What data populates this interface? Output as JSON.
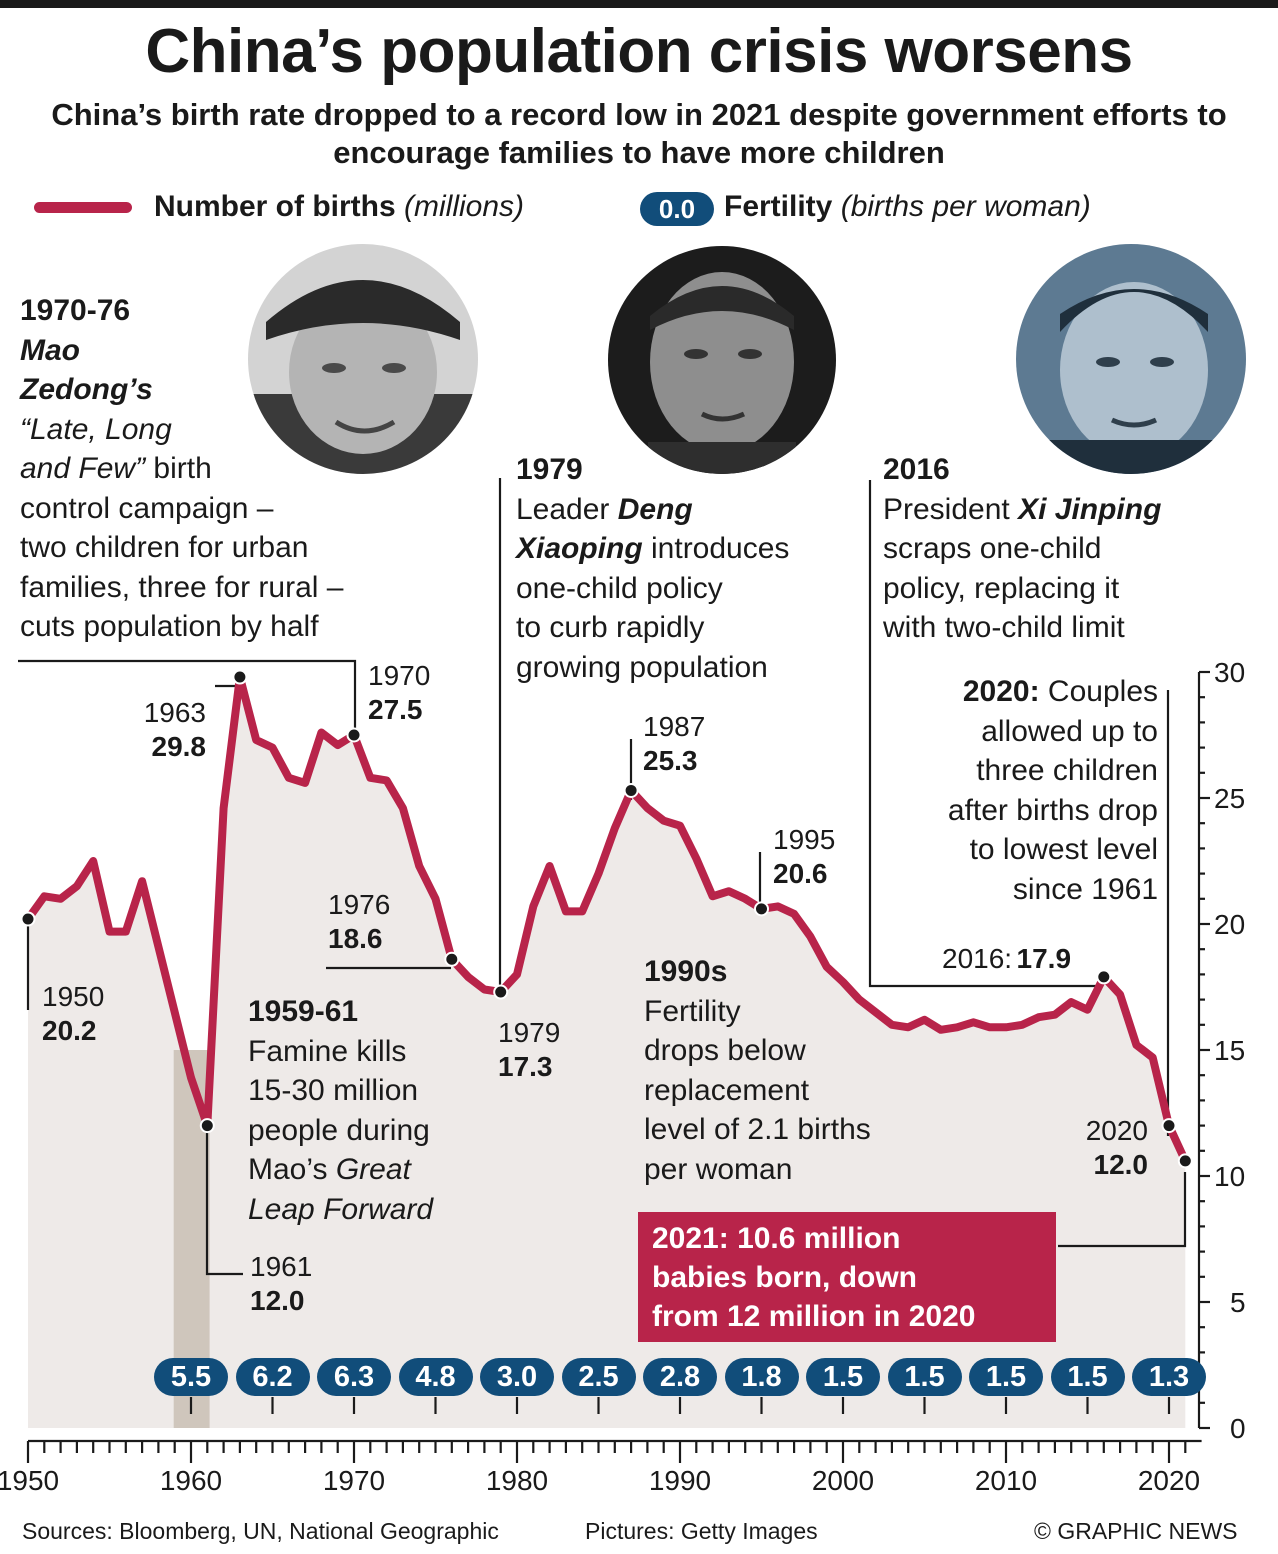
{
  "title": "China’s population crisis worsens",
  "subtitle": "China’s birth rate dropped to a record low in 2021 despite government efforts to encourage families to have more children",
  "colors": {
    "births_line": "#b8244a",
    "fertility_badge": "#114d7a",
    "area_fill": "#eeeae8",
    "famine_band": "#cfc6bc",
    "callout_bg": "#b8244a",
    "text": "#1a1a1a"
  },
  "legend": {
    "births_label": "Number of births",
    "births_unit": "(millions)",
    "fertility_badge_sample": "0.0",
    "fertility_label": "Fertility",
    "fertility_unit": "(births per woman)"
  },
  "photos": [
    {
      "subject": "Mao Zedong portrait",
      "icon": "portrait-photo"
    },
    {
      "subject": "Deng Xiaoping portrait",
      "icon": "portrait-photo"
    },
    {
      "subject": "Xi Jinping portrait",
      "icon": "portrait-photo"
    }
  ],
  "annotations": {
    "mao": {
      "head": "1970-76",
      "name_line1": "Mao",
      "name_line2": "Zedong’s",
      "quote_line1": "“Late, Long",
      "quote_line2": "and Few”",
      "line3_rest": " birth",
      "lines": [
        "control campaign –",
        "two children for urban",
        "families, three for rural –",
        "cuts population by half"
      ]
    },
    "deng": {
      "head": "1979",
      "line1_pre": "Leader ",
      "name_part1": "Deng",
      "name_part2": "Xiaoping",
      "line2_rest": " introduces",
      "lines": [
        "one-child policy",
        "to curb rapidly",
        "growing population"
      ]
    },
    "xi": {
      "head": "2016",
      "line1_pre": "President ",
      "name": "Xi Jinping",
      "lines": [
        "scraps one-child",
        "policy, replacing it",
        "with two-child limit"
      ]
    },
    "famine": {
      "head": "1959-61",
      "lines": [
        "Famine kills",
        "15-30 million",
        "people during"
      ],
      "line4_pre": "Mao’s ",
      "line4_italic": "Great",
      "line5_italic": "Leap Forward"
    },
    "nineties": {
      "head": "1990s",
      "lines": [
        "Fertility",
        "drops below",
        "replacement",
        "level of 2.1 births",
        "per woman"
      ]
    },
    "y2020": {
      "head": "2020:",
      "head_rest": " Couples",
      "lines": [
        "allowed up to",
        "three children",
        "after births drop",
        "to lowest level",
        "since 1961"
      ]
    },
    "callout_2021": {
      "lines": [
        "2021: 10.6 million",
        "babies born, down",
        "from 12 million in 2020"
      ]
    }
  },
  "point_labels": [
    {
      "year": "1950",
      "value": "20.2"
    },
    {
      "year": "1963",
      "value": "29.8"
    },
    {
      "year": "1970",
      "value": "27.5"
    },
    {
      "year": "1976",
      "value": "18.6"
    },
    {
      "year": "1979",
      "value": "17.3"
    },
    {
      "year": "1987",
      "value": "25.3"
    },
    {
      "year": "1995",
      "value": "20.6"
    },
    {
      "year": "2016:",
      "value": "17.9"
    },
    {
      "year": "2020",
      "value": "12.0"
    },
    {
      "year": "1961",
      "value": "12.0"
    }
  ],
  "footer": {
    "sources": "Sources: Bloomberg, UN, National Geographic",
    "pictures": "Pictures: Getty Images",
    "copyright": "© GRAPHIC NEWS"
  },
  "chart_data": {
    "type": "line",
    "series": [
      {
        "name": "Number of births (millions)",
        "x": [
          1950,
          1951,
          1952,
          1953,
          1954,
          1955,
          1956,
          1957,
          1958,
          1959,
          1960,
          1961,
          1962,
          1963,
          1964,
          1965,
          1966,
          1967,
          1968,
          1969,
          1970,
          1971,
          1972,
          1973,
          1974,
          1975,
          1976,
          1977,
          1978,
          1979,
          1980,
          1981,
          1982,
          1983,
          1984,
          1985,
          1986,
          1987,
          1988,
          1989,
          1990,
          1991,
          1992,
          1993,
          1994,
          1995,
          1996,
          1997,
          1998,
          1999,
          2000,
          2001,
          2002,
          2003,
          2004,
          2005,
          2006,
          2007,
          2008,
          2009,
          2010,
          2011,
          2012,
          2013,
          2014,
          2015,
          2016,
          2017,
          2018,
          2019,
          2020,
          2021
        ],
        "values": [
          20.2,
          21.1,
          21.0,
          21.5,
          22.5,
          19.7,
          19.7,
          21.7,
          19.1,
          16.5,
          13.9,
          12.0,
          24.6,
          29.8,
          27.3,
          27.0,
          25.8,
          25.6,
          27.6,
          27.1,
          27.5,
          25.8,
          25.7,
          24.6,
          22.3,
          21.0,
          18.6,
          17.9,
          17.4,
          17.3,
          18.0,
          20.7,
          22.3,
          20.5,
          20.5,
          22.0,
          23.8,
          25.3,
          24.6,
          24.1,
          23.9,
          22.6,
          21.1,
          21.3,
          21.0,
          20.6,
          20.7,
          20.4,
          19.5,
          18.3,
          17.7,
          17.0,
          16.5,
          16.0,
          15.9,
          16.2,
          15.8,
          15.9,
          16.1,
          15.9,
          15.9,
          16.0,
          16.3,
          16.4,
          16.9,
          16.6,
          17.9,
          17.2,
          15.2,
          14.7,
          12.0,
          10.6
        ]
      },
      {
        "name": "Fertility (births per woman)",
        "x": [
          1960,
          1965,
          1970,
          1975,
          1980,
          1985,
          1990,
          1995,
          2000,
          2005,
          2010,
          2015,
          2020
        ],
        "values": [
          5.5,
          6.2,
          6.3,
          4.8,
          3.0,
          2.5,
          2.8,
          1.8,
          1.5,
          1.5,
          1.5,
          1.5,
          1.3
        ],
        "labels": [
          "5.5",
          "6.2",
          "6.3",
          "4.8",
          "3.0",
          "2.5",
          "2.8",
          "1.8",
          "1.5",
          "1.5",
          "1.5",
          "1.5",
          "1.3"
        ]
      }
    ],
    "highlight_band": {
      "from": 1959,
      "to": 1961
    },
    "yaxis": {
      "ticks": [
        "30",
        "25",
        "20",
        "15",
        "10",
        "5",
        "0"
      ],
      "tick_values": [
        30,
        25,
        20,
        15,
        10,
        5,
        0
      ],
      "ylim": [
        0,
        30
      ]
    },
    "xaxis": {
      "tick_labels": [
        "1950",
        "1960",
        "1970",
        "1980",
        "1990",
        "2000",
        "2010",
        "2020"
      ],
      "tick_values": [
        1950,
        1960,
        1970,
        1980,
        1990,
        2000,
        2010,
        2020
      ],
      "xlim": [
        1950,
        2021
      ]
    },
    "marked_points": [
      1950,
      1961,
      1963,
      1970,
      1976,
      1979,
      1987,
      1995,
      2016,
      2020,
      2021
    ]
  }
}
